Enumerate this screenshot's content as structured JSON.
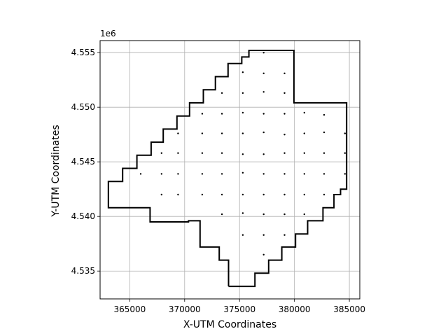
{
  "chart_data": {
    "type": "scatter",
    "title": "",
    "xlabel": "X-UTM Coordinates",
    "ylabel": "Y-UTM Coordinates",
    "y_offset_label": "1e6",
    "xlim": [
      362300,
      385950
    ],
    "ylim": [
      4532450,
      4556100
    ],
    "x_ticks": [
      365000,
      370000,
      375000,
      380000,
      385000
    ],
    "x_tick_labels": [
      "365000",
      "370000",
      "375000",
      "380000",
      "385000"
    ],
    "y_ticks": [
      4535000,
      4540000,
      4545000,
      4550000,
      4555000
    ],
    "y_tick_labels": [
      "4.535",
      "4.540",
      "4.545",
      "4.550",
      "4.555"
    ],
    "grid": true,
    "series": [
      {
        "kind": "boundary-polygon",
        "color": "#000000",
        "x": [
          374000,
          374000,
          373150,
          373150,
          371400,
          371400,
          370350,
          370350,
          366850,
          366850,
          363050,
          363050,
          364350,
          364350,
          365650,
          365650,
          366950,
          366950,
          368050,
          368050,
          369300,
          369300,
          370450,
          370450,
          371700,
          371700,
          372800,
          372800,
          373950,
          373950,
          375200,
          375200,
          375850,
          375850,
          379950,
          379950,
          384750,
          384750,
          384200,
          384200,
          383600,
          383600,
          382600,
          382600,
          381200,
          381200,
          380100,
          380100,
          378850,
          378850,
          377650,
          377650,
          376400,
          376400,
          374000
        ],
        "y": [
          4533600,
          4536000,
          4536000,
          4537200,
          4537200,
          4539600,
          4539600,
          4539500,
          4539500,
          4540800,
          4540800,
          4543200,
          4543200,
          4544400,
          4544400,
          4545600,
          4545600,
          4546800,
          4546800,
          4548000,
          4548000,
          4549200,
          4549200,
          4550400,
          4550400,
          4551600,
          4551600,
          4552800,
          4552800,
          4554000,
          4554000,
          4554600,
          4554600,
          4555200,
          4555200,
          4550400,
          4550400,
          4542500,
          4542500,
          4542000,
          4542000,
          4540800,
          4540800,
          4539600,
          4539600,
          4538400,
          4538400,
          4537200,
          4537200,
          4536000,
          4536000,
          4534800,
          4534800,
          4533600,
          4533600
        ]
      },
      {
        "kind": "points",
        "color": "#000000",
        "points": [
          [
            377200,
            4555000
          ],
          [
            375300,
            4553200
          ],
          [
            377200,
            4553100
          ],
          [
            379100,
            4553100
          ],
          [
            373400,
            4551300
          ],
          [
            375300,
            4551300
          ],
          [
            377200,
            4551400
          ],
          [
            379100,
            4551300
          ],
          [
            371600,
            4549400
          ],
          [
            373400,
            4549400
          ],
          [
            375300,
            4549500
          ],
          [
            377200,
            4549400
          ],
          [
            379100,
            4549400
          ],
          [
            380900,
            4549500
          ],
          [
            382700,
            4549300
          ],
          [
            369400,
            4547600
          ],
          [
            371600,
            4547600
          ],
          [
            373400,
            4547600
          ],
          [
            375300,
            4547600
          ],
          [
            377200,
            4547700
          ],
          [
            379100,
            4547500
          ],
          [
            380900,
            4547600
          ],
          [
            382700,
            4547700
          ],
          [
            384600,
            4547600
          ],
          [
            367900,
            4545800
          ],
          [
            369400,
            4545800
          ],
          [
            371600,
            4545800
          ],
          [
            373400,
            4545800
          ],
          [
            375300,
            4545700
          ],
          [
            377200,
            4545700
          ],
          [
            379100,
            4545800
          ],
          [
            380900,
            4545800
          ],
          [
            382700,
            4545800
          ],
          [
            384600,
            4545800
          ],
          [
            366000,
            4543900
          ],
          [
            367900,
            4543900
          ],
          [
            369400,
            4543900
          ],
          [
            371600,
            4543900
          ],
          [
            373400,
            4543900
          ],
          [
            375300,
            4544000
          ],
          [
            377200,
            4543900
          ],
          [
            379100,
            4543900
          ],
          [
            380900,
            4543900
          ],
          [
            382700,
            4543900
          ],
          [
            384600,
            4543900
          ],
          [
            367900,
            4542000
          ],
          [
            369400,
            4542000
          ],
          [
            371600,
            4542000
          ],
          [
            373400,
            4542000
          ],
          [
            375300,
            4542000
          ],
          [
            377200,
            4542000
          ],
          [
            379100,
            4542000
          ],
          [
            380900,
            4542000
          ],
          [
            382700,
            4542000
          ],
          [
            373400,
            4540200
          ],
          [
            375300,
            4540300
          ],
          [
            377200,
            4540200
          ],
          [
            379100,
            4540200
          ],
          [
            380900,
            4540200
          ],
          [
            375300,
            4538300
          ],
          [
            377200,
            4538300
          ],
          [
            379100,
            4538300
          ],
          [
            377200,
            4536500
          ]
        ]
      }
    ]
  }
}
